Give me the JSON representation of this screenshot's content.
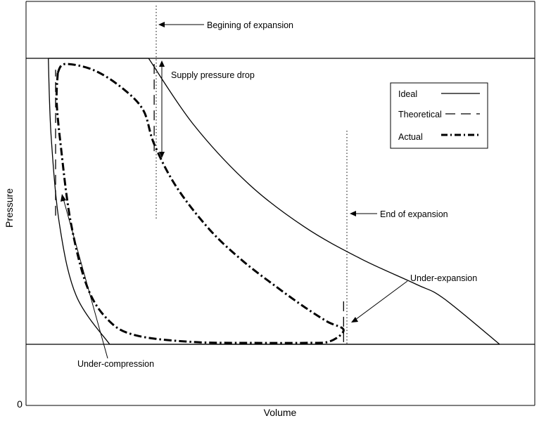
{
  "chart_data": {
    "type": "line",
    "title": "",
    "xlabel": "Volume",
    "ylabel": "Pressure",
    "y_tick_labels": [
      "0"
    ],
    "grid": false,
    "legend_position": "top-right",
    "legend": [
      {
        "label": "Ideal",
        "style": "solid"
      },
      {
        "label": "Theoretical",
        "style": "dashed"
      },
      {
        "label": "Actual",
        "style": "dash-dot-thick"
      }
    ],
    "annotations": {
      "beginning_of_expansion": "Begining of expansion",
      "supply_pressure_drop": "Supply pressure drop",
      "end_of_expansion": "End of expansion",
      "under_expansion": "Under-expansion",
      "under_compression": "Under-compression"
    },
    "series": [
      {
        "name": "Ideal",
        "style": "solid",
        "segments": [
          {
            "part": "supply line",
            "x": [
              0.04,
              0.22
            ],
            "y": [
              1.0,
              1.0
            ]
          },
          {
            "part": "expansion",
            "x": [
              0.22,
              0.3,
              0.4,
              0.5,
              0.6,
              0.7,
              0.75,
              0.85
            ],
            "y": [
              1.0,
              0.77,
              0.56,
              0.41,
              0.3,
              0.21,
              0.16,
              0.0
            ]
          },
          {
            "part": "exhaust line",
            "x": [
              0.85,
              0.15
            ],
            "y": [
              0.0,
              0.0
            ]
          },
          {
            "part": "compression",
            "x": [
              0.15,
              0.09,
              0.06,
              0.045,
              0.04
            ],
            "y": [
              0.0,
              0.17,
              0.42,
              0.73,
              1.0
            ]
          }
        ]
      },
      {
        "name": "Theoretical",
        "style": "dashed",
        "segments": [
          {
            "part": "pressure drop",
            "x": [
              0.23,
              0.23
            ],
            "y": [
              0.98,
              0.66
            ]
          },
          {
            "part": "end of expansion drop",
            "x": [
              0.57,
              0.57
            ],
            "y": [
              0.15,
              0.0
            ]
          },
          {
            "part": "under-compression rise",
            "x": [
              0.053,
              0.053
            ],
            "y": [
              0.45,
              0.96
            ]
          }
        ]
      },
      {
        "name": "Actual",
        "style": "dash-dot-thick",
        "x": [
          0.057,
          0.07,
          0.12,
          0.17,
          0.21,
          0.23,
          0.27,
          0.33,
          0.39,
          0.45,
          0.5,
          0.54,
          0.57,
          0.545,
          0.5,
          0.4,
          0.3,
          0.2,
          0.15,
          0.11,
          0.08,
          0.062,
          0.055,
          0.057
        ],
        "y": [
          0.95,
          0.98,
          0.96,
          0.9,
          0.82,
          0.7,
          0.55,
          0.4,
          0.29,
          0.2,
          0.13,
          0.08,
          0.05,
          0.01,
          0.005,
          0.005,
          0.008,
          0.03,
          0.08,
          0.2,
          0.43,
          0.7,
          0.85,
          0.95
        ]
      }
    ]
  }
}
